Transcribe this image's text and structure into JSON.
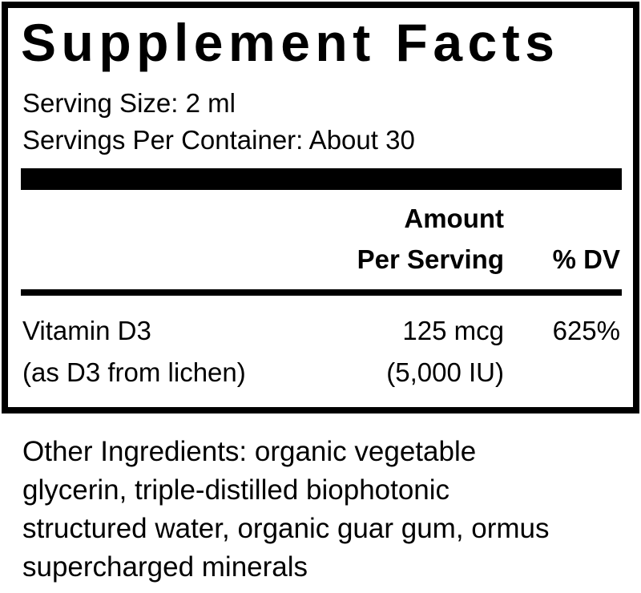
{
  "title": "Supplement Facts",
  "serving_size": "Serving Size: 2 ml",
  "servings_per_container": "Servings Per Container: About 30",
  "header": {
    "amount_line1": "Amount",
    "amount_line2": "Per Serving",
    "dv": "% DV"
  },
  "nutrients": [
    {
      "name": "Vitamin D3",
      "source": "(as D3 from lichen)",
      "amount": "125 mcg",
      "amount_alt": "(5,000 IU)",
      "dv": "625%"
    }
  ],
  "other_ingredients": [
    "Other Ingredients: organic vegetable",
    "glycerin, triple-distilled biophotonic",
    "structured water, organic guar gum, ormus",
    "supercharged minerals"
  ]
}
